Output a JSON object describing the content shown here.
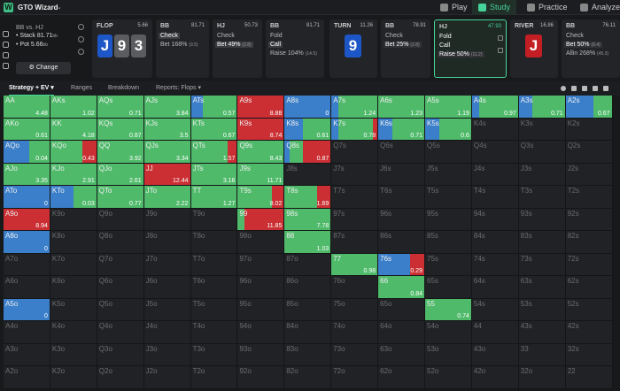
{
  "app": {
    "name": "GTO Wizard",
    "logo": "W"
  },
  "nav": [
    {
      "label": "Play",
      "icon": "spade-icon",
      "active": false
    },
    {
      "label": "Study",
      "icon": "study-icon",
      "active": true
    },
    {
      "label": "Practice",
      "icon": "gamepad-icon",
      "active": false
    },
    {
      "label": "Analyze",
      "icon": "lightbulb-icon",
      "active": false
    }
  ],
  "spot": {
    "title": "BB vs. HJ",
    "stack_label": "Stack",
    "stack_value": "81.71",
    "stack_unit": "bb",
    "pot_label": "Pot",
    "pot_value": "5.66",
    "pot_unit": "bb",
    "change_button": "Change"
  },
  "street_panels": {
    "flop": {
      "label": "FLOP",
      "pot": "5.66",
      "cards": [
        {
          "rank": "J",
          "color": "blue"
        },
        {
          "rank": "9",
          "color": "gray"
        },
        {
          "rank": "3",
          "color": "gray"
        }
      ]
    },
    "bb1": {
      "label": "BB",
      "stack": "81.71",
      "actions": [
        {
          "label": "Check"
        },
        {
          "label": "Bet 168%",
          "size": "(9.5)"
        }
      ]
    },
    "hj1": {
      "label": "HJ",
      "stack": "50.73",
      "actions": [
        {
          "label": "Check"
        },
        {
          "label": "Bet 49%",
          "size": "(2.8)"
        }
      ]
    },
    "bb2": {
      "label": "BB",
      "stack": "81.71",
      "actions": [
        {
          "label": "Fold"
        },
        {
          "label": "Call"
        },
        {
          "label": "Raise 104%",
          "size": "(14.5)"
        }
      ]
    },
    "turn": {
      "label": "TURN",
      "pot": "11.26",
      "card": {
        "rank": "9",
        "color": "blue"
      }
    },
    "bb3": {
      "label": "BB",
      "stack": "78.91",
      "actions": [
        {
          "label": "Check"
        },
        {
          "label": "Bet 25%",
          "size": "(2.8)"
        }
      ]
    },
    "hj2": {
      "label": "HJ",
      "stack": "47.93",
      "actions": [
        {
          "label": "Fold"
        },
        {
          "label": "Call"
        },
        {
          "label": "Raise 50%",
          "size": "(11.2)"
        }
      ]
    },
    "river": {
      "label": "RIVER",
      "pot": "16.86",
      "card": {
        "rank": "J",
        "color": "red"
      }
    },
    "bb4": {
      "label": "BB",
      "stack": "76.11",
      "actions": [
        {
          "label": "Check"
        },
        {
          "label": "Bet 50%",
          "size": "(8.4)"
        },
        {
          "label": "Allin 268%",
          "size": "(45.3)"
        }
      ]
    }
  },
  "toolbar": {
    "tabs": [
      "Strategy + EV",
      "Ranges",
      "Breakdown",
      "Reports: Flops"
    ]
  },
  "colors": {
    "fold": "#3b7fca",
    "call": "#4fba6a",
    "raise": "#cb2f33",
    "accent": "#46d39a",
    "empty": "#212225"
  },
  "grid": {
    "rows": [
      [
        "AA",
        "AKs",
        "AQs",
        "AJs",
        "ATs",
        "A9s",
        "A8s",
        "A7s",
        "A6s",
        "A5s",
        "A4s",
        "A3s",
        "A2s"
      ],
      [
        "AKo",
        "KK",
        "KQs",
        "KJs",
        "KTs",
        "K9s",
        "K8s",
        "K7s",
        "K6s",
        "K5s",
        "K4s",
        "K3s",
        "K2s"
      ],
      [
        "AQo",
        "KQo",
        "QQ",
        "QJs",
        "QTs",
        "Q9s",
        "Q8s",
        "Q7s",
        "Q6s",
        "Q5s",
        "Q4s",
        "Q3s",
        "Q2s"
      ],
      [
        "AJo",
        "KJo",
        "QJo",
        "JJ",
        "JTs",
        "J9s",
        "J8s",
        "J7s",
        "J6s",
        "J5s",
        "J4s",
        "J3s",
        "J2s"
      ],
      [
        "ATo",
        "KTo",
        "QTo",
        "JTo",
        "TT",
        "T9s",
        "T8s",
        "T7s",
        "T6s",
        "T5s",
        "T4s",
        "T3s",
        "T2s"
      ],
      [
        "A9o",
        "K9o",
        "Q9o",
        "J9o",
        "T9o",
        "99",
        "98s",
        "97s",
        "96s",
        "95s",
        "94s",
        "93s",
        "92s"
      ],
      [
        "A8o",
        "K8o",
        "Q8o",
        "J8o",
        "T8o",
        "98o",
        "88",
        "87s",
        "86s",
        "85s",
        "84s",
        "83s",
        "82s"
      ],
      [
        "A7o",
        "K7o",
        "Q7o",
        "J7o",
        "T7o",
        "97o",
        "87o",
        "77",
        "76s",
        "75s",
        "74s",
        "73s",
        "72s"
      ],
      [
        "A6o",
        "K6o",
        "Q6o",
        "J6o",
        "T6o",
        "96o",
        "86o",
        "76o",
        "66",
        "65s",
        "64s",
        "63s",
        "62s"
      ],
      [
        "A5o",
        "K5o",
        "Q5o",
        "J5o",
        "T5o",
        "95o",
        "85o",
        "75o",
        "65o",
        "55",
        "54s",
        "53s",
        "52s"
      ],
      [
        "A4o",
        "K4o",
        "Q4o",
        "J4o",
        "T4o",
        "94o",
        "84o",
        "74o",
        "64o",
        "54o",
        "44",
        "43s",
        "42s"
      ],
      [
        "A3o",
        "K3o",
        "Q3o",
        "J3o",
        "T3o",
        "93o",
        "83o",
        "73o",
        "63o",
        "53o",
        "43o",
        "33",
        "32s"
      ],
      [
        "A2o",
        "K2o",
        "Q2o",
        "J2o",
        "T2o",
        "92o",
        "82o",
        "72o",
        "62o",
        "52o",
        "42o",
        "32o",
        "22"
      ]
    ],
    "hands": {
      "AA": {
        "ev": "4.48",
        "mix": [
          0,
          1,
          0
        ]
      },
      "AKs": {
        "ev": "1.02",
        "mix": [
          0,
          1,
          0
        ]
      },
      "AQs": {
        "ev": "0.71",
        "mix": [
          0,
          1,
          0
        ]
      },
      "AJs": {
        "ev": "3.84",
        "mix": [
          0,
          1,
          0
        ]
      },
      "ATs": {
        "ev": "0.57",
        "mix": [
          0.25,
          0.75,
          0
        ]
      },
      "A9s": {
        "ev": "8.88",
        "mix": [
          0,
          0,
          1
        ]
      },
      "A8s": {
        "ev": "0",
        "mix": [
          1,
          0,
          0
        ]
      },
      "A7s": {
        "ev": "1.24",
        "mix": [
          0.15,
          0.85,
          0
        ]
      },
      "A6s": {
        "ev": "1.23",
        "mix": [
          0,
          1,
          0
        ]
      },
      "A5s": {
        "ev": "1.19",
        "mix": [
          0,
          1,
          0
        ]
      },
      "A4s": {
        "ev": "0.97",
        "mix": [
          0.15,
          0.85,
          0
        ]
      },
      "A3s": {
        "ev": "0.71",
        "mix": [
          0.3,
          0.7,
          0
        ]
      },
      "A2s": {
        "ev": "0.67",
        "mix": [
          0.6,
          0.4,
          0
        ]
      },
      "AKo": {
        "ev": "0.61",
        "mix": [
          0,
          1,
          0
        ]
      },
      "KK": {
        "ev": "4.18",
        "mix": [
          0,
          1,
          0
        ]
      },
      "KQs": {
        "ev": "0.87",
        "mix": [
          0,
          1,
          0
        ]
      },
      "KJs": {
        "ev": "3.5",
        "mix": [
          0,
          1,
          0
        ]
      },
      "KTs": {
        "ev": "0.67",
        "mix": [
          0,
          1,
          0
        ]
      },
      "K9s": {
        "ev": "8.74",
        "mix": [
          0,
          0,
          1
        ]
      },
      "K8s": {
        "ev": "0.61",
        "mix": [
          0.4,
          0.6,
          0
        ]
      },
      "K7s": {
        "ev": "0.78",
        "mix": [
          0.15,
          0.75,
          0.1
        ]
      },
      "K6s": {
        "ev": "0.71",
        "mix": [
          0.3,
          0.7,
          0
        ]
      },
      "K5s": {
        "ev": "0.6",
        "mix": [
          0.3,
          0.7,
          0
        ]
      },
      "AQo": {
        "ev": "0.04",
        "mix": [
          0.55,
          0.45,
          0
        ]
      },
      "KQo": {
        "ev": "0.43",
        "mix": [
          0,
          0.7,
          0.3
        ]
      },
      "QQ": {
        "ev": "3.92",
        "mix": [
          0,
          1,
          0
        ]
      },
      "QJs": {
        "ev": "3.34",
        "mix": [
          0,
          1,
          0
        ]
      },
      "QTs": {
        "ev": "1.57",
        "mix": [
          0,
          0.8,
          0.2
        ]
      },
      "Q9s": {
        "ev": "8.43",
        "mix": [
          0,
          1,
          0
        ]
      },
      "Q8s": {
        "ev": "0.87",
        "mix": [
          0.1,
          0.3,
          0.6
        ]
      },
      "AJo": {
        "ev": "3.35",
        "mix": [
          0,
          1,
          0
        ]
      },
      "KJo": {
        "ev": "2.91",
        "mix": [
          0,
          1,
          0
        ]
      },
      "QJo": {
        "ev": "2.61",
        "mix": [
          0,
          1,
          0
        ]
      },
      "JJ": {
        "ev": "12.44",
        "mix": [
          0,
          0,
          1
        ]
      },
      "JTs": {
        "ev": "3.16",
        "mix": [
          0,
          1,
          0
        ]
      },
      "J9s": {
        "ev": "11.71",
        "mix": [
          0,
          1,
          0
        ]
      },
      "ATo": {
        "ev": "0",
        "mix": [
          1,
          0,
          0
        ]
      },
      "KTo": {
        "ev": "0.03",
        "mix": [
          0.5,
          0.5,
          0
        ]
      },
      "QTo": {
        "ev": "0.77",
        "mix": [
          0,
          1,
          0
        ]
      },
      "JTo": {
        "ev": "2.22",
        "mix": [
          0,
          1,
          0
        ]
      },
      "TT": {
        "ev": "1.27",
        "mix": [
          0,
          1,
          0
        ]
      },
      "T9s": {
        "ev": "8.02",
        "mix": [
          0,
          0.75,
          0.25
        ]
      },
      "T8s": {
        "ev": "1.69",
        "mix": [
          0,
          0.7,
          0.3
        ]
      },
      "A9o": {
        "ev": "8.94",
        "mix": [
          0,
          0,
          1
        ]
      },
      "99": {
        "ev": "11.85",
        "mix": [
          0,
          0.15,
          0.85
        ]
      },
      "98s": {
        "ev": "7.78",
        "mix": [
          0,
          1,
          0
        ]
      },
      "A8o": {
        "ev": "0",
        "mix": [
          1,
          0,
          0
        ]
      },
      "88": {
        "ev": "1.03",
        "mix": [
          0,
          1,
          0
        ]
      },
      "77": {
        "ev": "0.98",
        "mix": [
          0,
          1,
          0
        ]
      },
      "76s": {
        "ev": "0.29",
        "mix": [
          0.7,
          0,
          0.3
        ]
      },
      "66": {
        "ev": "0.84",
        "mix": [
          0,
          1,
          0
        ]
      },
      "A5o": {
        "ev": "0",
        "mix": [
          1,
          0,
          0
        ]
      },
      "55": {
        "ev": "0.74",
        "mix": [
          0,
          1,
          0
        ]
      }
    }
  }
}
